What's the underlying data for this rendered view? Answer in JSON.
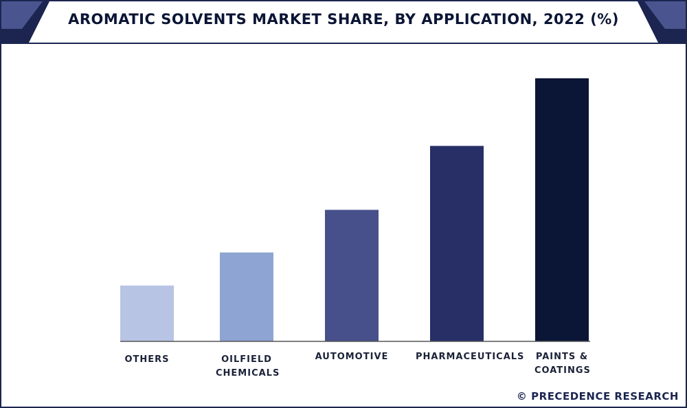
{
  "chart_data": {
    "type": "bar",
    "title": "AROMATIC SOLVENTS MARKET SHARE, BY APPLICATION, 2022 (%)",
    "categories": [
      "OTHERS",
      "OILFIELD CHEMICALS",
      "AUTOMOTIVE",
      "PHARMACEUTICALS",
      "PAINTS & COATINGS"
    ],
    "values": [
      7.6,
      12.1,
      17.9,
      26.6,
      35.8
    ],
    "colors": [
      "#b8c4e4",
      "#8ea4d2",
      "#47508a",
      "#272f66",
      "#0b1535"
    ],
    "source": "© PRECEDENCE RESEARCH"
  }
}
